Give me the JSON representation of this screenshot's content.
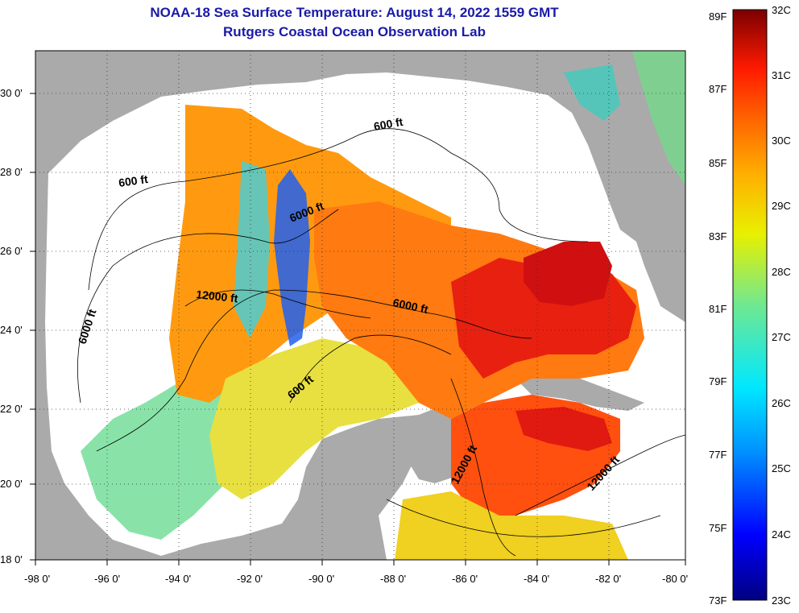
{
  "title_line1": "NOAA-18 Sea Surface Temperature:  August 14, 2022 1559 GMT",
  "title_line2": "Rutgers Coastal Ocean Observation Lab",
  "lon_ticks": [
    "-98 0'",
    "-96 0'",
    "-94 0'",
    "-92 0'",
    "-90 0'",
    "-88 0'",
    "-86 0'",
    "-84 0'",
    "-82 0'",
    "-80 0'"
  ],
  "lat_ticks": [
    "30 0'",
    "28 0'",
    "26 0'",
    "24 0'",
    "22 0'",
    "20 0'",
    "18 0'"
  ],
  "contour_labels": [
    "600 ft",
    "600 ft",
    "6000 ft",
    "12000 ft",
    "6000 ft",
    "6000 ft",
    "600 ft",
    "12000 ft",
    "12000 ft"
  ],
  "colorbar_f": [
    "89F",
    "87F",
    "85F",
    "83F",
    "81F",
    "79F",
    "77F",
    "75F",
    "73F"
  ],
  "colorbar_c": [
    "32C",
    "31C",
    "30C",
    "29C",
    "28C",
    "27C",
    "26C",
    "25C",
    "24C",
    "23C"
  ],
  "colors": {
    "title": "#1a1aa8",
    "land": "#aaaaaa",
    "cloud": "#ffffff"
  },
  "map_extent": {
    "lon": [
      -98,
      -80
    ],
    "lat": [
      18,
      31
    ]
  },
  "temperature_range_c": [
    23,
    32
  ]
}
